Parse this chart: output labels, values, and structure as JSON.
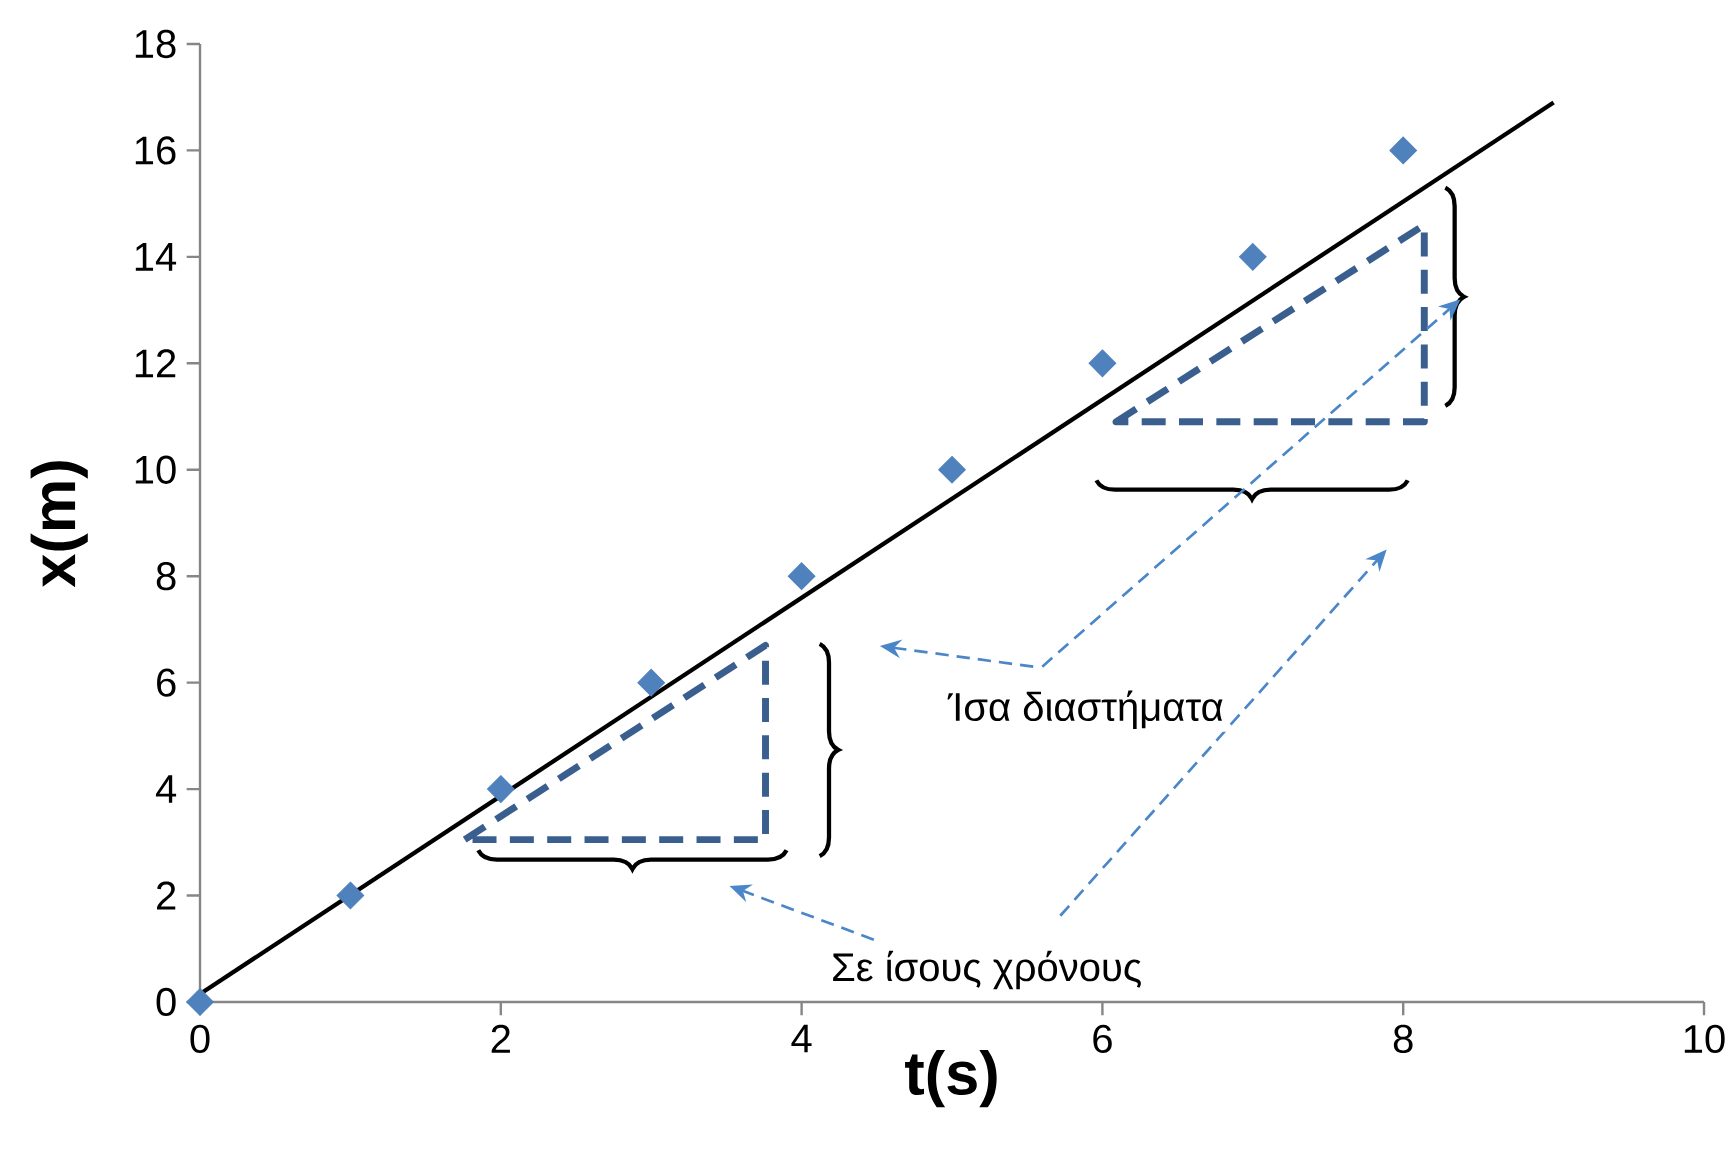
{
  "chart_data": {
    "type": "scatter",
    "xlabel": "t(s)",
    "ylabel": "x(m)",
    "x": [
      0,
      1,
      2,
      3,
      4,
      5,
      6,
      7,
      8
    ],
    "series": [
      {
        "color": "#4f81bd",
        "marker": "diamond",
        "values": [
          0,
          2,
          4,
          6,
          8,
          10,
          12,
          14,
          16
        ]
      },
      {
        "type": "line",
        "color": "#000000",
        "marker": "none",
        "line_style": "solid",
        "x": [
          0,
          9
        ],
        "values": [
          0.15,
          16.9
        ]
      }
    ],
    "xlim": [
      0,
      10
    ],
    "ylim": [
      0,
      18
    ],
    "xticks": [
      0,
      2,
      4,
      6,
      8,
      10
    ],
    "yticks": [
      0,
      2,
      4,
      6,
      8,
      10,
      12,
      14,
      16,
      18
    ],
    "annotations": [
      "Ίσα διαστήματα",
      "Σε ίσους χρόνους"
    ]
  }
}
